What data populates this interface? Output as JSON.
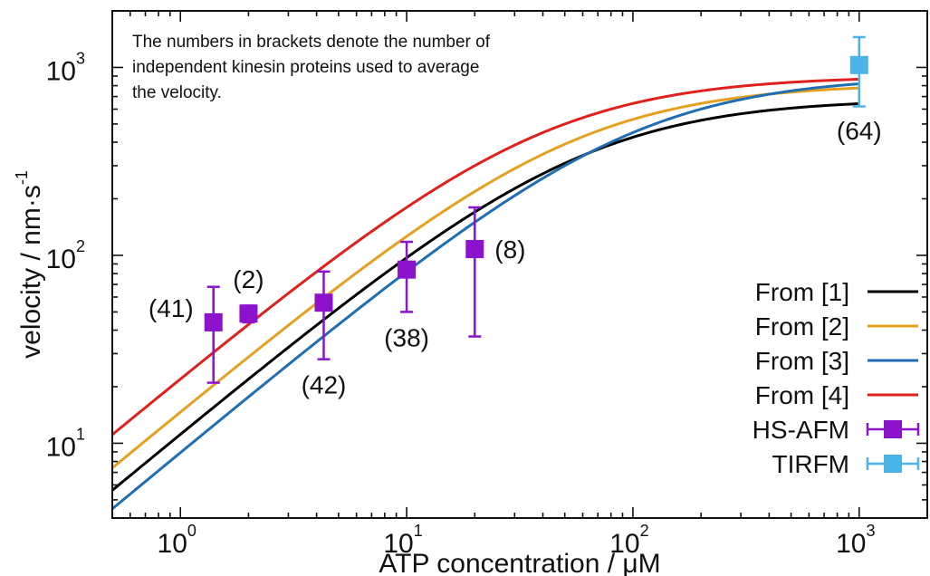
{
  "chart_data": {
    "type": "line",
    "title": "",
    "xlabel": "ATP concentration / μM",
    "ylabel_main": "velocity / nm·s",
    "ylabel_sup": "-1",
    "xscale": "log",
    "yscale": "log",
    "xlim": [
      0.5,
      2000
    ],
    "ylim": [
      4,
      2000
    ],
    "x_ticks": [
      {
        "value": 1,
        "base": "10",
        "exp": "0"
      },
      {
        "value": 10,
        "base": "10",
        "exp": "1"
      },
      {
        "value": 100,
        "base": "10",
        "exp": "2"
      },
      {
        "value": 1000,
        "base": "10",
        "exp": "3"
      }
    ],
    "y_ticks": [
      {
        "value": 10,
        "base": "10",
        "exp": "1"
      },
      {
        "value": 100,
        "base": "10",
        "exp": "2"
      },
      {
        "value": 1000,
        "base": "10",
        "exp": "3"
      }
    ],
    "annotation": [
      "The numbers in brackets denote the number of",
      "independent kinesin proteins used to average",
      "the velocity."
    ],
    "legend_position": "bottom-right",
    "curves": [
      {
        "name": "From [1]",
        "color": "#000000",
        "vmax": 680,
        "km": 60
      },
      {
        "name": "From [2]",
        "color": "#e6a020",
        "vmax": 820,
        "km": 55
      },
      {
        "name": "From [3]",
        "color": "#1f6eb4",
        "vmax": 900,
        "km": 100
      },
      {
        "name": "From [4]",
        "color": "#e0201c",
        "vmax": 900,
        "km": 40
      }
    ],
    "points": [
      {
        "name": "HS-AFM",
        "color": "#8c12cc",
        "data": [
          {
            "x": 1.4,
            "y": 44,
            "ylow": 21,
            "yhigh": 68,
            "xlow": 1.4,
            "xhigh": 1.4,
            "label": "(41)",
            "label_pos": "left"
          },
          {
            "x": 2.0,
            "y": 49,
            "ylow": 44,
            "yhigh": 54,
            "xlow": 1.85,
            "xhigh": 2.15,
            "label": "(2)",
            "label_pos": "above"
          },
          {
            "x": 4.3,
            "y": 56,
            "ylow": 28,
            "yhigh": 82,
            "xlow": 4.0,
            "xhigh": 4.6,
            "label": "(42)",
            "label_pos": "below"
          },
          {
            "x": 10,
            "y": 84,
            "ylow": 50,
            "yhigh": 118,
            "xlow": 9.6,
            "xhigh": 10.4,
            "label": "(38)",
            "label_pos": "below"
          },
          {
            "x": 20,
            "y": 108,
            "ylow": 37,
            "yhigh": 180,
            "xlow": 19,
            "xhigh": 21,
            "label": "(8)",
            "label_pos": "right"
          }
        ]
      },
      {
        "name": "TIRFM",
        "color": "#4ab4e8",
        "data": [
          {
            "x": 1000,
            "y": 1030,
            "ylow": 620,
            "yhigh": 1450,
            "xlow": 1000,
            "xhigh": 1000,
            "label": "(64)",
            "label_pos": "below"
          }
        ]
      }
    ]
  }
}
